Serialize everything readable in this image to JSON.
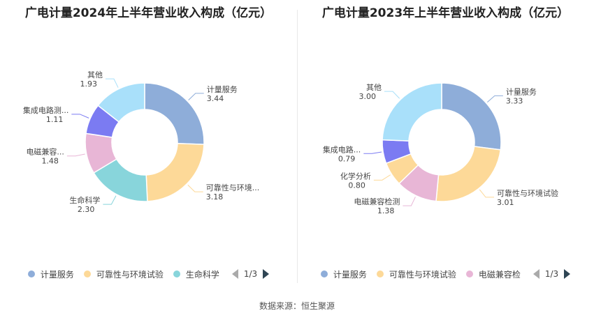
{
  "source": "数据来源：恒生聚源",
  "chart_data": [
    {
      "type": "pie",
      "title": "广电计量2024年上半年营业收入构成（亿元）",
      "unit": "亿元",
      "labels": [
        "计量服务",
        "可靠性与环境试验",
        "生命科学",
        "电磁兼容检测",
        "集成电路测试与分析",
        "其他"
      ],
      "label_display": [
        "计量服务",
        "可靠性与环境...",
        "生命科学",
        "电磁兼容...",
        "集成电路测...",
        "其他"
      ],
      "values": [
        3.44,
        3.18,
        2.3,
        1.48,
        1.11,
        1.93
      ],
      "value_labels": [
        "3.44",
        "3.18",
        "2.30",
        "1.48",
        "1.11",
        "1.93"
      ],
      "colors": [
        "#8eadd9",
        "#fdd998",
        "#88d5db",
        "#e8b6d6",
        "#7b7bf2",
        "#a9e0fa"
      ],
      "legend": {
        "items": [
          "计量服务",
          "可靠性与环境试验",
          "生命科学"
        ],
        "page": "1/3",
        "position": "bottom"
      }
    },
    {
      "type": "pie",
      "title": "广电计量2023年上半年营业收入构成（亿元）",
      "unit": "亿元",
      "labels": [
        "计量服务",
        "可靠性与环境试验",
        "电磁兼容检测",
        "化学分析",
        "集成电路测试与分析",
        "其他"
      ],
      "label_display": [
        "计量服务",
        "可靠性与环境试验",
        "电磁兼容检测",
        "化学分析",
        "集成电路...",
        "其他"
      ],
      "values": [
        3.33,
        3.01,
        1.38,
        0.8,
        0.79,
        3.0
      ],
      "value_labels": [
        "3.33",
        "3.01",
        "1.38",
        "0.80",
        "0.79",
        "3.00"
      ],
      "colors": [
        "#8eadd9",
        "#fdd998",
        "#e8b6d6",
        "#fdd998",
        "#7b7bf2",
        "#a9e0fa"
      ],
      "legend": {
        "items": [
          "计量服务",
          "可靠性与环境试验",
          "电磁兼容检"
        ],
        "page": "1/3",
        "position": "bottom"
      }
    }
  ]
}
